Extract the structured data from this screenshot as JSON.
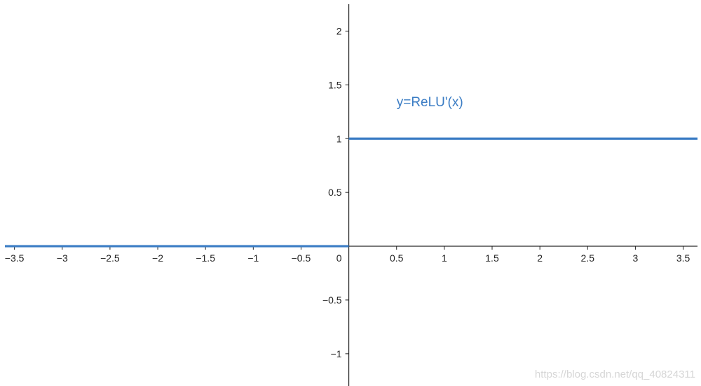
{
  "chart_data": {
    "type": "line",
    "title": "",
    "xlabel": "",
    "ylabel": "",
    "xlim": [
      -3.6,
      3.65
    ],
    "ylim": [
      -1.3,
      2.25
    ],
    "grid": false,
    "x_ticks": [
      {
        "value": -3.5,
        "label": "−3.5"
      },
      {
        "value": -3,
        "label": "−3"
      },
      {
        "value": -2.5,
        "label": "−2.5"
      },
      {
        "value": -2,
        "label": "−2"
      },
      {
        "value": -1.5,
        "label": "−1.5"
      },
      {
        "value": -1,
        "label": "−1"
      },
      {
        "value": -0.5,
        "label": "−0.5"
      },
      {
        "value": 0.5,
        "label": "0.5"
      },
      {
        "value": 1,
        "label": "1"
      },
      {
        "value": 1.5,
        "label": "1.5"
      },
      {
        "value": 2,
        "label": "2"
      },
      {
        "value": 2.5,
        "label": "2.5"
      },
      {
        "value": 3,
        "label": "3"
      },
      {
        "value": 3.5,
        "label": "3.5"
      }
    ],
    "y_ticks": [
      {
        "value": 2,
        "label": "2"
      },
      {
        "value": 1.5,
        "label": "1.5"
      },
      {
        "value": 1,
        "label": "1"
      },
      {
        "value": 0.5,
        "label": "0.5"
      },
      {
        "value": -0.5,
        "label": "−0.5"
      },
      {
        "value": -1,
        "label": "−1"
      }
    ],
    "origin_label": "0",
    "series": [
      {
        "name": "y=ReLU'(x)",
        "color": "#3a7cc4",
        "segments": [
          {
            "x": [
              -3.6,
              0
            ],
            "y": [
              0,
              0
            ]
          },
          {
            "x": [
              0,
              3.65
            ],
            "y": [
              1,
              1
            ]
          }
        ]
      }
    ],
    "annotation": {
      "text": "y=ReLU'(x)",
      "x": 0.5,
      "y": 1.3,
      "color": "#3a7cc4"
    }
  },
  "watermark": "https://blog.csdn.net/qq_40824311"
}
